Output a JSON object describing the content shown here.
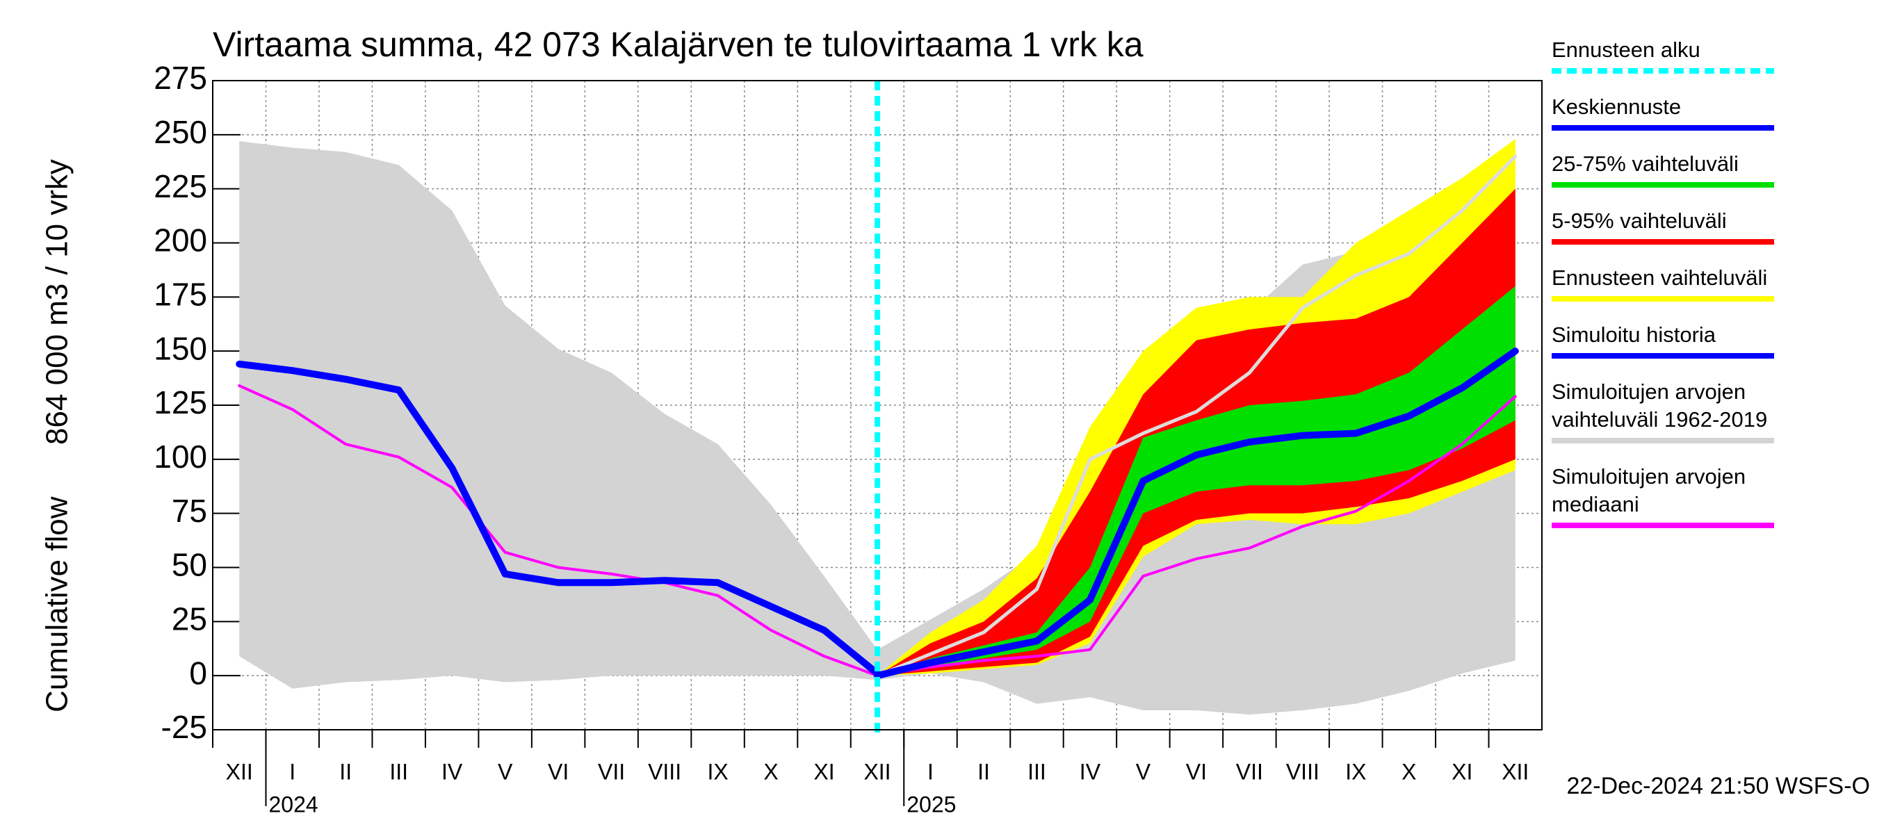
{
  "chart_data": {
    "type": "band-line",
    "title": "Virtaama summa, 42 073 Kalajärven te tulovirtaama 1 vrk ka",
    "ylabel": [
      "Cumulative flow",
      "864 000 m3 / 10 vrky"
    ],
    "categories": [
      "XII",
      "I",
      "II",
      "III",
      "IV",
      "V",
      "VI",
      "VII",
      "VIII",
      "IX",
      "X",
      "XI",
      "XII",
      "I",
      "II",
      "III",
      "IV",
      "V",
      "VI",
      "VII",
      "VIII",
      "IX",
      "X",
      "XI",
      "XII"
    ],
    "years": [
      {
        "label": "2024",
        "start": 1
      },
      {
        "label": "2025",
        "start": 13
      }
    ],
    "ylim": [
      -25,
      275
    ],
    "yticks": [
      -25,
      0,
      25,
      50,
      75,
      100,
      125,
      150,
      175,
      200,
      225,
      250,
      275
    ],
    "grid": true,
    "footer": "22-Dec-2024 21:50 WSFS-O",
    "series": [
      {
        "name": "Ennusteen alku",
        "kind": "vline",
        "color": "#00ffff",
        "at": 12
      },
      {
        "name": "Keskiennuste",
        "kind": "line",
        "color": "#0000ff",
        "width": 10,
        "values": [
          null,
          null,
          null,
          null,
          null,
          null,
          null,
          null,
          null,
          null,
          null,
          null,
          0,
          6,
          11,
          16,
          35,
          90,
          102,
          108,
          111,
          112,
          120,
          133,
          150
        ]
      },
      {
        "name": "25-75% vaihteluväli",
        "kind": "band",
        "color": "#00e000",
        "low": [
          null,
          null,
          null,
          null,
          null,
          null,
          null,
          null,
          null,
          null,
          null,
          null,
          0,
          4,
          8,
          12,
          25,
          75,
          85,
          88,
          88,
          90,
          95,
          105,
          118
        ],
        "high": [
          null,
          null,
          null,
          null,
          null,
          null,
          null,
          null,
          null,
          null,
          null,
          null,
          0,
          8,
          14,
          20,
          50,
          110,
          118,
          125,
          127,
          130,
          140,
          160,
          180
        ]
      },
      {
        "name": "5-95% vaihteluväli",
        "kind": "band",
        "color": "#ff0000",
        "low": [
          null,
          null,
          null,
          null,
          null,
          null,
          null,
          null,
          null,
          null,
          null,
          null,
          0,
          2,
          4,
          6,
          18,
          60,
          72,
          75,
          75,
          78,
          82,
          90,
          100
        ],
        "high": [
          null,
          null,
          null,
          null,
          null,
          null,
          null,
          null,
          null,
          null,
          null,
          null,
          0,
          15,
          25,
          45,
          85,
          130,
          155,
          160,
          163,
          165,
          175,
          200,
          225
        ]
      },
      {
        "name": "Ennusteen vaihteluväli",
        "kind": "band",
        "color": "#ffff00",
        "low": [
          null,
          null,
          null,
          null,
          null,
          null,
          null,
          null,
          null,
          null,
          null,
          null,
          0,
          1,
          3,
          5,
          15,
          55,
          70,
          72,
          70,
          70,
          75,
          85,
          95
        ],
        "high": [
          null,
          null,
          null,
          null,
          null,
          null,
          null,
          null,
          null,
          null,
          null,
          null,
          0,
          20,
          35,
          60,
          115,
          150,
          170,
          175,
          175,
          200,
          215,
          230,
          248
        ]
      },
      {
        "name": "Simuloitu historia",
        "kind": "line",
        "color": "#0000ff",
        "width": 10,
        "values": [
          144,
          141,
          137,
          132,
          96,
          47,
          43,
          43,
          44,
          43,
          32,
          21,
          1,
          null,
          null,
          null,
          null,
          null,
          null,
          null,
          null,
          null,
          null,
          null,
          null
        ]
      },
      {
        "name": "Simuloitujen arvojen vaihteluväli 1962-2019",
        "kind": "band",
        "color": "#d3d3d3",
        "low": [
          9,
          -6,
          -3,
          -2,
          0,
          -3,
          -2,
          0,
          0,
          0,
          0,
          0,
          -2,
          1,
          -3,
          -13,
          -10,
          -16,
          -16,
          -18,
          -16,
          -13,
          -7,
          1,
          7
        ],
        "high": [
          247,
          244,
          242,
          236,
          215,
          171,
          151,
          140,
          121,
          107,
          79,
          46,
          12,
          26,
          40,
          57,
          68,
          73,
          146,
          168,
          190,
          196,
          204,
          215,
          240
        ]
      },
      {
        "name": "Simuloitujen arvojen mediaani",
        "kind": "line",
        "color": "#ff00ff",
        "width": 4,
        "values": [
          134,
          123,
          107,
          101,
          87,
          57,
          50,
          47,
          43,
          37,
          21,
          9,
          0,
          4,
          7,
          9,
          12,
          46,
          54,
          59,
          69,
          76,
          90,
          107,
          129
        ]
      },
      {
        "kind": "line",
        "color": "#dcdcdc",
        "width": 5,
        "values": [
          null,
          null,
          null,
          null,
          null,
          null,
          null,
          null,
          null,
          null,
          null,
          null,
          0,
          10,
          20,
          40,
          100,
          112,
          122,
          140,
          170,
          185,
          195,
          215,
          240
        ]
      }
    ]
  }
}
